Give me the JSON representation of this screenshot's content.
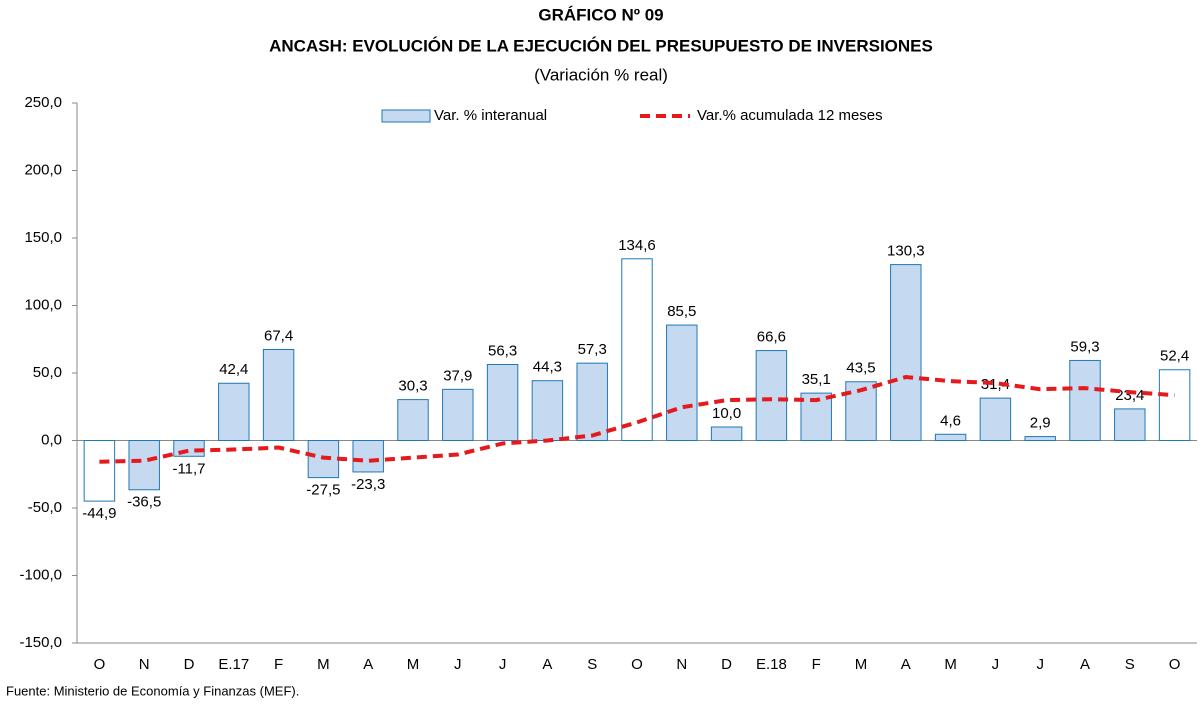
{
  "chart_data": {
    "type": "bar-line",
    "title": "GRÁFICO Nº 09",
    "subtitle": "ANCASH: EVOLUCIÓN DE LA EJECUCIÓN DEL PRESUPUESTO DE INVERSIONES",
    "unit_note": "(Variación % real)",
    "source": "Fuente: Ministerio de Economía y Finanzas (MEF).",
    "categories": [
      "O",
      "N",
      "D",
      "E.17",
      "F",
      "M",
      "A",
      "M",
      "J",
      "J",
      "A",
      "S",
      "O",
      "N",
      "D",
      "E.18",
      "F",
      "M",
      "A",
      "M",
      "J",
      "J",
      "A",
      "S",
      "O"
    ],
    "series": [
      {
        "name": "Var. % interanual",
        "type": "bar",
        "color": "#c5d9f1",
        "stroke": "#1f78b4",
        "colors": [
          "#ffffff",
          "#c5d9f1",
          "#c5d9f1",
          "#c5d9f1",
          "#c5d9f1",
          "#c5d9f1",
          "#c5d9f1",
          "#c5d9f1",
          "#c5d9f1",
          "#c5d9f1",
          "#c5d9f1",
          "#c5d9f1",
          "#ffffff",
          "#c5d9f1",
          "#c5d9f1",
          "#c5d9f1",
          "#c5d9f1",
          "#c5d9f1",
          "#c5d9f1",
          "#c5d9f1",
          "#c5d9f1",
          "#c5d9f1",
          "#c5d9f1",
          "#c5d9f1",
          "#ffffff"
        ],
        "values": [
          -44.9,
          -36.5,
          -11.7,
          42.4,
          67.4,
          -27.5,
          -23.3,
          30.3,
          37.9,
          56.3,
          44.3,
          57.3,
          134.6,
          85.5,
          10.0,
          66.6,
          35.1,
          43.5,
          130.3,
          4.6,
          31.4,
          2.9,
          59.3,
          23.4,
          52.4
        ],
        "value_labels": [
          "-44,9",
          "-36,5",
          "-11,7",
          "42,4",
          "67,4",
          "-27,5",
          "-23,3",
          "30,3",
          "37,9",
          "56,3",
          "44,3",
          "57,3",
          "134,6",
          "85,5",
          "10,0",
          "66,6",
          "35,1",
          "43,5",
          "130,3",
          "4,6",
          "31,4",
          "2,9",
          "59,3",
          "23,4",
          "52,4"
        ]
      },
      {
        "name": "Var.% acumulada 12 meses",
        "type": "line",
        "color": "#e41a1c",
        "dashed": true,
        "values": [
          -15.7,
          -15.0,
          -7.5,
          -6.7,
          -5.2,
          -12.7,
          -15.0,
          -12.7,
          -10.4,
          -2.2,
          0.0,
          3.7,
          13.4,
          24.6,
          29.9,
          30.6,
          29.9,
          37.3,
          47.0,
          44.0,
          42.5,
          38.0,
          38.8,
          35.8,
          33.6
        ]
      }
    ],
    "ylim": [
      -150,
      250
    ],
    "yticks": [
      {
        "value": -150,
        "label": "-150,0"
      },
      {
        "value": -100,
        "label": "-100,0"
      },
      {
        "value": -50,
        "label": "-50,0"
      },
      {
        "value": 0,
        "label": "0,0"
      },
      {
        "value": 50,
        "label": "50,0"
      },
      {
        "value": 100,
        "label": "100,0"
      },
      {
        "value": 150,
        "label": "150,0"
      },
      {
        "value": 200,
        "label": "200,0"
      },
      {
        "value": 250,
        "label": "250,0"
      }
    ],
    "grid": false,
    "legend": "top"
  }
}
